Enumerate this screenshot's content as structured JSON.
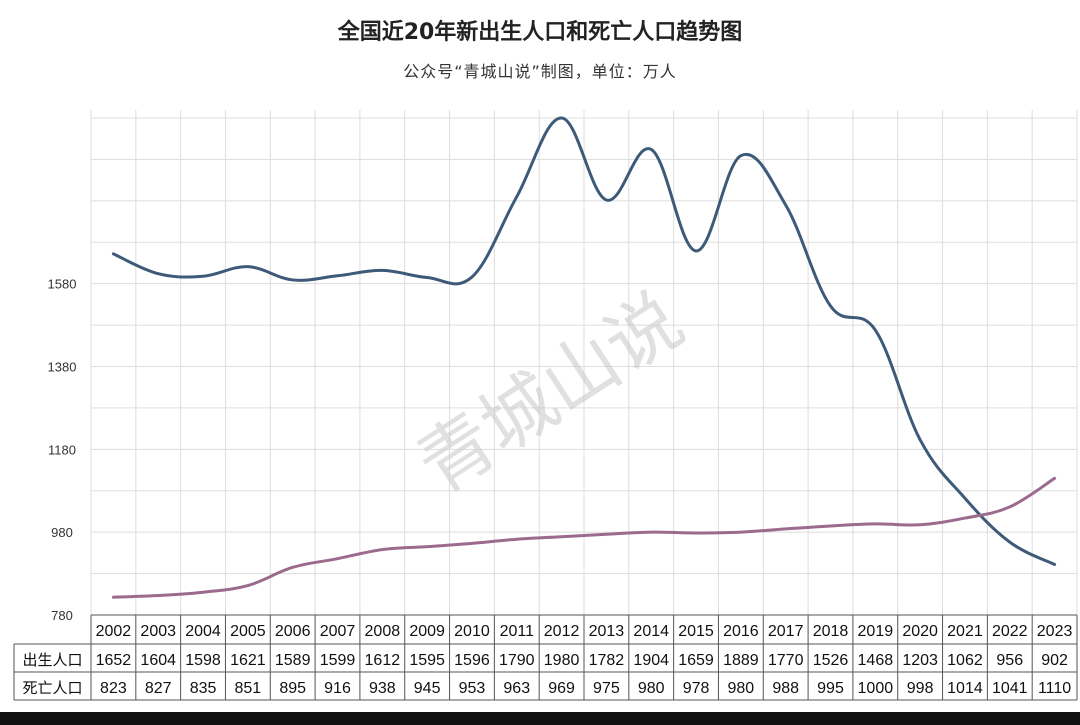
{
  "title": "全国近20年新出生人口和死亡人口趋势图",
  "subtitle": "公众号“青城山说”制图，单位：万人",
  "watermark": "青城山说",
  "colors": {
    "births": "#3d5a78",
    "deaths": "#9b6a8c",
    "grid": "#dddddd",
    "table_border": "#555555"
  },
  "chart_data": {
    "type": "line",
    "title": "全国近20年新出生人口和死亡人口趋势图",
    "subtitle": "公众号“青城山说”制图，单位：万人",
    "categories": [
      "2002",
      "2003",
      "2004",
      "2005",
      "2006",
      "2007",
      "2008",
      "2009",
      "2010",
      "2011",
      "2012",
      "2013",
      "2014",
      "2015",
      "2016",
      "2017",
      "2018",
      "2019",
      "2020",
      "2021",
      "2022",
      "2023"
    ],
    "series": [
      {
        "name": "出生人口",
        "values": [
          1652,
          1604,
          1598,
          1621,
          1589,
          1599,
          1612,
          1595,
          1596,
          1790,
          1980,
          1782,
          1904,
          1659,
          1889,
          1770,
          1526,
          1468,
          1203,
          1062,
          956,
          902
        ]
      },
      {
        "name": "死亡人口",
        "values": [
          823,
          827,
          835,
          851,
          895,
          916,
          938,
          945,
          953,
          963,
          969,
          975,
          980,
          978,
          980,
          988,
          995,
          1000,
          998,
          1014,
          1041,
          1110
        ]
      }
    ],
    "y_ticks": [
      780,
      980,
      1180,
      1380,
      1580
    ],
    "ylim": [
      780,
      1980
    ],
    "grid": true,
    "legend": "table-bottom"
  }
}
